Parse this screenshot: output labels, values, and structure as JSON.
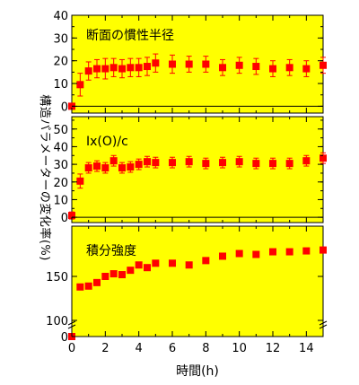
{
  "figure": {
    "y_label": "構造パラメーターの変化率(%)",
    "x_label": "時間(h)",
    "x_ticks": [
      "0",
      "2",
      "4",
      "6",
      "8",
      "10",
      "12",
      "14"
    ],
    "colors": {
      "plot_bg": "#ffff00",
      "marker": "#ff0000",
      "errorbar": "#ff0000",
      "axis": "#000000"
    }
  },
  "chart_data": [
    {
      "type": "scatter",
      "title": "断面の慣性半径",
      "xlim": [
        0,
        15
      ],
      "ylim": [
        -3,
        40
      ],
      "y_ticks": [
        "0",
        "10",
        "20",
        "30",
        "40"
      ],
      "x": [
        0,
        0.5,
        1,
        1.5,
        2,
        2.5,
        3,
        3.5,
        4,
        4.5,
        5,
        6,
        7,
        8,
        9,
        10,
        11,
        12,
        13,
        14,
        15
      ],
      "y": [
        0,
        9.5,
        15.5,
        16.5,
        16.5,
        17,
        16.5,
        17,
        17,
        17.5,
        19,
        18.5,
        18.5,
        18.5,
        17,
        18,
        17.5,
        16.5,
        17,
        16.5,
        18
      ],
      "err": [
        0,
        5,
        4,
        4,
        4.5,
        4,
        4,
        4,
        4,
        4,
        4,
        4,
        3.5,
        3.5,
        3.5,
        3.5,
        3.5,
        3.5,
        3.5,
        3.5,
        3.5
      ]
    },
    {
      "type": "scatter",
      "title": "Ix(O)/c",
      "xlim": [
        0,
        15
      ],
      "ylim": [
        -3,
        57
      ],
      "y_ticks": [
        "0",
        "10",
        "20",
        "30",
        "40",
        "50"
      ],
      "x": [
        0,
        0.5,
        1,
        1.5,
        2,
        2.5,
        3,
        3.5,
        4,
        4.5,
        5,
        6,
        7,
        8,
        9,
        10,
        11,
        12,
        13,
        14,
        15
      ],
      "y": [
        1,
        20.5,
        28,
        29,
        28,
        32,
        28,
        28.5,
        30,
        31.5,
        31,
        31,
        31.5,
        30.5,
        31,
        31.5,
        30.5,
        30.5,
        30.5,
        32,
        33.5
      ],
      "err": [
        2,
        4,
        3,
        3,
        3,
        3,
        3,
        3,
        3,
        3,
        3,
        3,
        3,
        3,
        3,
        3,
        3,
        3,
        3,
        3,
        3
      ]
    },
    {
      "type": "scatter",
      "title": "積分強度",
      "xlim": [
        0,
        15
      ],
      "y_ticks": [
        "0",
        "100",
        "150"
      ],
      "y_axis_break": "between 0 and 100",
      "x": [
        0,
        0.5,
        1,
        1.5,
        2,
        2.5,
        3,
        3.5,
        4,
        4.5,
        5,
        6,
        7,
        8,
        9,
        10,
        11,
        12,
        13,
        14,
        15
      ],
      "y": [
        0,
        138,
        139,
        143,
        150,
        153,
        152,
        157,
        163,
        160,
        165,
        165,
        163,
        168,
        173,
        176,
        175,
        178,
        178,
        179,
        180
      ],
      "err": [
        0,
        2,
        2,
        2,
        2,
        2,
        2,
        2,
        2,
        2,
        2,
        2,
        2,
        2,
        2,
        2,
        2,
        2,
        2,
        2,
        2
      ]
    }
  ]
}
